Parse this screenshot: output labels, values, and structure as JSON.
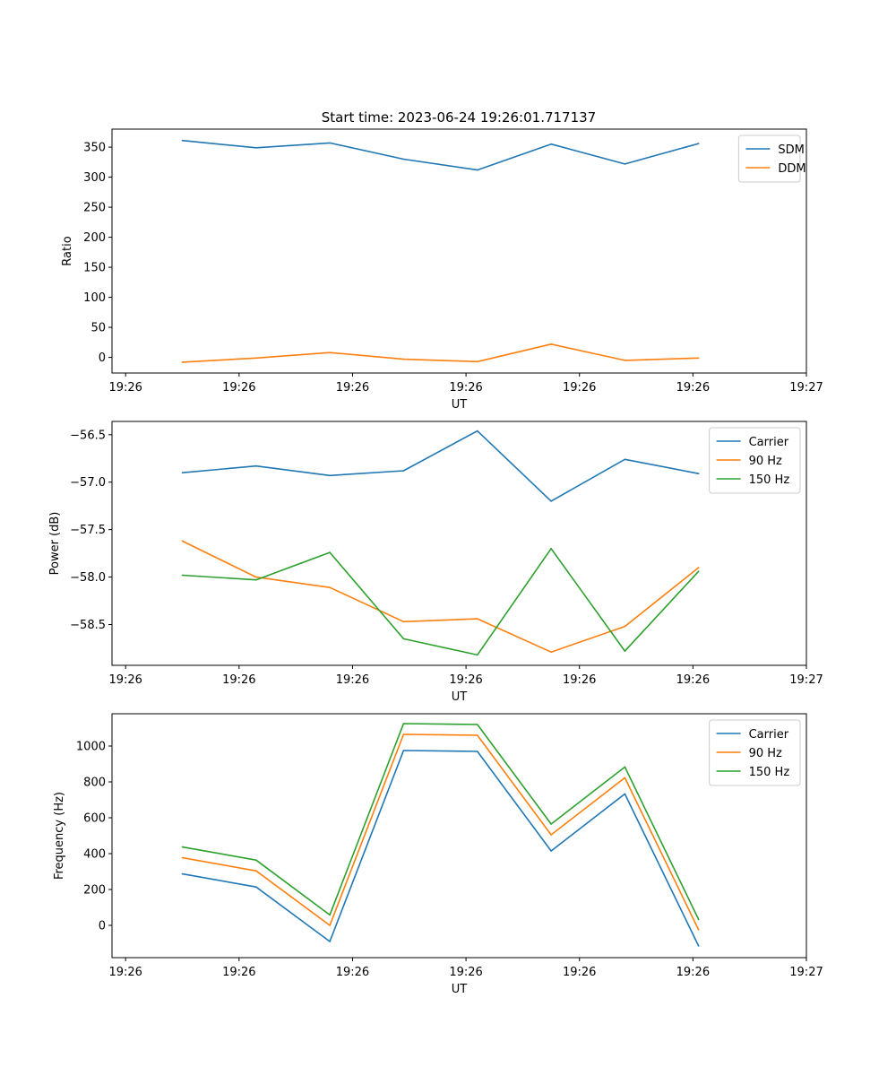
{
  "figure": {
    "title": "Start time: 2023-06-24 19:26:01.717137"
  },
  "colors": {
    "blue": "#1f77b4",
    "orange": "#ff7f0e",
    "green": "#2ca02c"
  },
  "chart_data": [
    {
      "type": "line",
      "title": "Start time: 2023-06-24 19:26:01.717137",
      "xlabel": "UT",
      "ylabel": "Ratio",
      "x_ticks": [
        0,
        1,
        2,
        3,
        4,
        5,
        6
      ],
      "x_tick_labels": [
        "19:26",
        "19:26",
        "19:26",
        "19:26",
        "19:26",
        "19:26",
        "19:27"
      ],
      "x": [
        0.5,
        1.15,
        1.8,
        2.45,
        3.1,
        3.75,
        4.4,
        5.05
      ],
      "xlim": [
        -0.12,
        6.0
      ],
      "ylim": [
        -26,
        380
      ],
      "y_ticks": [
        0,
        50,
        100,
        150,
        200,
        250,
        300,
        350
      ],
      "legend_position": "upper right",
      "grid": false,
      "series": [
        {
          "name": "SDM",
          "color": "#1f77b4",
          "values": [
            361,
            349,
            357,
            330,
            312,
            355,
            322,
            356
          ]
        },
        {
          "name": "DDM",
          "color": "#ff7f0e",
          "values": [
            -8,
            -1,
            8,
            -3,
            -7,
            22,
            -5,
            -1
          ]
        }
      ]
    },
    {
      "type": "line",
      "title": "",
      "xlabel": "UT",
      "ylabel": "Power (dB)",
      "x_ticks": [
        0,
        1,
        2,
        3,
        4,
        5,
        6
      ],
      "x_tick_labels": [
        "19:26",
        "19:26",
        "19:26",
        "19:26",
        "19:26",
        "19:26",
        "19:27"
      ],
      "x": [
        0.5,
        1.15,
        1.8,
        2.45,
        3.1,
        3.75,
        4.4,
        5.05
      ],
      "xlim": [
        -0.12,
        6.0
      ],
      "ylim": [
        -58.93,
        -56.36
      ],
      "y_ticks": [
        -58.5,
        -58.0,
        -57.5,
        -57.0,
        -56.5
      ],
      "y_tick_labels": [
        "−58.5",
        "−58.0",
        "−57.5",
        "−57.0",
        "−56.5"
      ],
      "legend_position": "upper right",
      "grid": false,
      "series": [
        {
          "name": "Carrier",
          "color": "#1f77b4",
          "values": [
            -56.9,
            -56.83,
            -56.93,
            -56.88,
            -56.46,
            -57.2,
            -56.76,
            -56.91
          ]
        },
        {
          "name": "90 Hz",
          "color": "#ff7f0e",
          "values": [
            -57.62,
            -58.0,
            -58.11,
            -58.47,
            -58.44,
            -58.79,
            -58.52,
            -57.9
          ]
        },
        {
          "name": "150 Hz",
          "color": "#2ca02c",
          "values": [
            -57.98,
            -58.03,
            -57.74,
            -58.65,
            -58.82,
            -57.7,
            -58.78,
            -57.94
          ]
        }
      ]
    },
    {
      "type": "line",
      "title": "",
      "xlabel": "UT",
      "ylabel": "Frequency (Hz)",
      "x_ticks": [
        0,
        1,
        2,
        3,
        4,
        5,
        6
      ],
      "x_tick_labels": [
        "19:26",
        "19:26",
        "19:26",
        "19:26",
        "19:26",
        "19:26",
        "19:27"
      ],
      "x": [
        0.5,
        1.15,
        1.8,
        2.45,
        3.1,
        3.75,
        4.4,
        5.05
      ],
      "xlim": [
        -0.12,
        6.0
      ],
      "ylim": [
        -180,
        1180
      ],
      "y_ticks": [
        0,
        200,
        400,
        600,
        800,
        1000
      ],
      "legend_position": "upper right",
      "grid": false,
      "series": [
        {
          "name": "Carrier",
          "color": "#1f77b4",
          "values": [
            287,
            214,
            -90,
            975,
            970,
            415,
            733,
            -115
          ]
        },
        {
          "name": "90 Hz",
          "color": "#ff7f0e",
          "values": [
            377,
            304,
            0,
            1065,
            1060,
            505,
            823,
            -25
          ]
        },
        {
          "name": "150 Hz",
          "color": "#2ca02c",
          "values": [
            437,
            364,
            58,
            1125,
            1120,
            565,
            883,
            33
          ]
        }
      ]
    }
  ]
}
